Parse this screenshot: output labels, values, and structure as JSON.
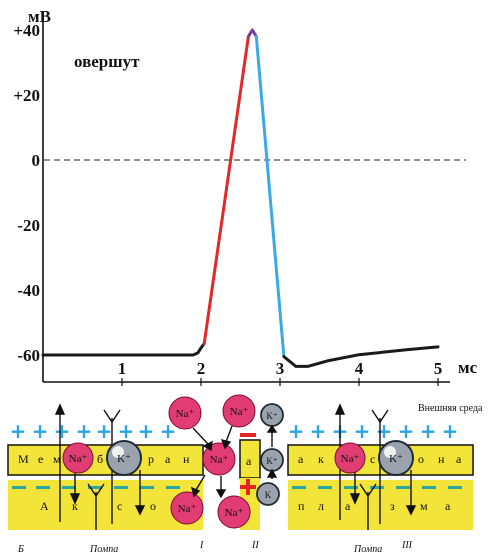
{
  "chart_data": {
    "type": "line",
    "ylabel": "мВ",
    "xlabel": "мс",
    "annotation": "овершут",
    "y_ticks": [
      "+40",
      "+20",
      "0",
      "-20",
      "-40",
      "-60"
    ],
    "x_ticks": [
      "1",
      "2",
      "3",
      "4",
      "5"
    ],
    "ylim": [
      -65,
      45
    ],
    "xlim": [
      0,
      5.3
    ],
    "series": [
      {
        "points": [
          [
            0,
            -60
          ],
          [
            1.9,
            -60
          ],
          [
            1.96,
            -59.4
          ],
          [
            2.0,
            -57.8
          ],
          [
            2.04,
            -56.5
          ]
        ],
        "color": "#1a1a1a"
      },
      {
        "points": [
          [
            2.04,
            -56.5
          ],
          [
            2.6,
            38
          ]
        ],
        "color": "#e02a2a"
      },
      {
        "points": [
          [
            2.6,
            38
          ],
          [
            2.65,
            40
          ],
          [
            2.7,
            38
          ]
        ],
        "color": "#7a3a9a"
      },
      {
        "points": [
          [
            2.7,
            38
          ],
          [
            3.05,
            -60.5
          ]
        ],
        "color": "#3aa9e6"
      },
      {
        "points": [
          [
            3.05,
            -60.5
          ],
          [
            3.2,
            -63.5
          ],
          [
            3.35,
            -63.5
          ],
          [
            3.6,
            -61.8
          ],
          [
            4.0,
            -59.9
          ],
          [
            4.6,
            -58.4
          ],
          [
            5.0,
            -57.5
          ]
        ],
        "color": "#1a1a1a"
      }
    ],
    "zero_line": 0
  },
  "diagram": {
    "membrane_left": [
      "М",
      "е",
      "м",
      "б",
      "р",
      "а",
      "н"
    ],
    "membrane_right": [
      "а",
      "к",
      "с",
      "о",
      "н",
      "а"
    ],
    "axon_left": [
      "А",
      "к",
      "с",
      "о"
    ],
    "plasma_right": [
      "п",
      "л",
      "а",
      "з",
      "м",
      "а"
    ],
    "na_label": "Na⁺",
    "k_label": "K⁺",
    "k_small": "K",
    "n_letter": "а",
    "outer_medium": "Внешняя среда",
    "pump_label": "Помпа",
    "panel_b": "Б",
    "section_1": "I",
    "section_2": "II",
    "section_3": "III",
    "colors": {
      "membrane": "#f3e43a",
      "ion_na": "#e23c75",
      "plus": "#2aa7e0",
      "minus": "#2aa7a0",
      "red": "#e52424"
    }
  }
}
